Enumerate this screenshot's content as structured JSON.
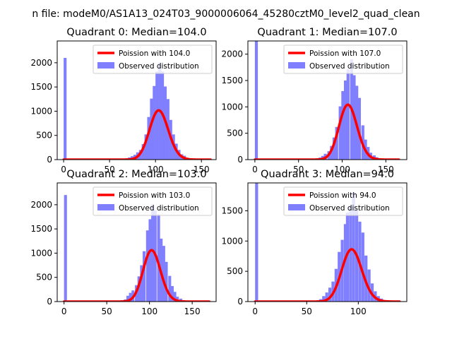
{
  "figure": {
    "suptitle": "n file: modeM0/AS1A13_024T03_9000006064_45280cztM0_level2_quad_clean"
  },
  "colors": {
    "hist": "#8080ff",
    "poisson": "#ff0000",
    "axes": "#000000",
    "background": "#ffffff"
  },
  "chart_data": [
    {
      "type": "bar",
      "title": "Quadrant 0: Median=104.0",
      "xlim": [
        -7,
        166
      ],
      "ylim": [
        0,
        2450
      ],
      "xticks": [
        0,
        50,
        100,
        150
      ],
      "yticks": [
        0,
        500,
        1000,
        1500,
        2000
      ],
      "legend_position": "top-right",
      "hist": {
        "name": "Observed distribution",
        "bin_width": 3.2,
        "bins": [
          [
            0,
            2100
          ],
          [
            64,
            20
          ],
          [
            67,
            25
          ],
          [
            70,
            45
          ],
          [
            73,
            70
          ],
          [
            76,
            100
          ],
          [
            79,
            150
          ],
          [
            82,
            200
          ],
          [
            85,
            320
          ],
          [
            88,
            520
          ],
          [
            91,
            880
          ],
          [
            94,
            1260
          ],
          [
            97,
            1520
          ],
          [
            100,
            1820
          ],
          [
            103,
            2000
          ],
          [
            106,
            1820
          ],
          [
            109,
            1510
          ],
          [
            112,
            1250
          ],
          [
            115,
            820
          ],
          [
            118,
            520
          ],
          [
            121,
            330
          ],
          [
            124,
            200
          ],
          [
            127,
            110
          ],
          [
            130,
            80
          ],
          [
            133,
            40
          ],
          [
            136,
            20
          ],
          [
            139,
            15
          ],
          [
            142,
            8
          ],
          [
            145,
            5
          ]
        ]
      },
      "poisson": {
        "name": "Poission with 104.0",
        "mean": 104.0,
        "scale": 26000,
        "x_range": [
          0,
          160
        ]
      }
    },
    {
      "type": "bar",
      "title": "Quadrant 1: Median=107.0",
      "xlim": [
        -8,
        174
      ],
      "ylim": [
        0,
        2250
      ],
      "xticks": [
        0,
        50,
        100,
        150
      ],
      "yticks": [
        0,
        500,
        1000,
        1500,
        2000
      ],
      "legend_position": "top-right",
      "hist": {
        "name": "Observed distribution",
        "bin_width": 3.4,
        "bins": [
          [
            0,
            2250
          ],
          [
            66,
            15
          ],
          [
            70,
            25
          ],
          [
            73,
            40
          ],
          [
            76,
            70
          ],
          [
            79,
            110
          ],
          [
            83,
            160
          ],
          [
            86,
            260
          ],
          [
            89,
            420
          ],
          [
            92,
            620
          ],
          [
            96,
            1010
          ],
          [
            99,
            1300
          ],
          [
            102,
            1500
          ],
          [
            105,
            1710
          ],
          [
            109,
            1900
          ],
          [
            112,
            1600
          ],
          [
            115,
            1400
          ],
          [
            118,
            1170
          ],
          [
            122,
            650
          ],
          [
            125,
            380
          ],
          [
            128,
            240
          ],
          [
            131,
            130
          ],
          [
            135,
            80
          ],
          [
            138,
            45
          ],
          [
            141,
            25
          ],
          [
            144,
            15
          ],
          [
            148,
            10
          ]
        ]
      },
      "poisson": {
        "name": "Poission with 107.0",
        "mean": 107.0,
        "scale": 27000,
        "x_range": [
          0,
          165
        ]
      }
    },
    {
      "type": "bar",
      "title": "Quadrant 2: Median=103.0",
      "xlim": [
        -8,
        178
      ],
      "ylim": [
        0,
        2450
      ],
      "xticks": [
        0,
        50,
        100,
        150
      ],
      "yticks": [
        0,
        500,
        1000,
        1500,
        2000
      ],
      "legend_position": "top-right",
      "hist": {
        "name": "Observed distribution",
        "bin_width": 3.4,
        "bins": [
          [
            0,
            2200
          ],
          [
            63,
            15
          ],
          [
            66,
            25
          ],
          [
            70,
            45
          ],
          [
            73,
            120
          ],
          [
            76,
            180
          ],
          [
            79,
            230
          ],
          [
            83,
            340
          ],
          [
            86,
            520
          ],
          [
            89,
            750
          ],
          [
            92,
            1040
          ],
          [
            96,
            1470
          ],
          [
            99,
            1700
          ],
          [
            102,
            2000
          ],
          [
            105,
            1880
          ],
          [
            109,
            1800
          ],
          [
            112,
            1300
          ],
          [
            115,
            1150
          ],
          [
            118,
            820
          ],
          [
            122,
            530
          ],
          [
            125,
            320
          ],
          [
            128,
            200
          ],
          [
            131,
            100
          ],
          [
            135,
            60
          ],
          [
            138,
            30
          ],
          [
            141,
            15
          ],
          [
            144,
            10
          ]
        ]
      },
      "poisson": {
        "name": "Poission with 103.0",
        "mean": 103.0,
        "scale": 27000,
        "x_range": [
          0,
          170
        ]
      }
    },
    {
      "type": "bar",
      "title": "Quadrant 3: Median=94.0",
      "xlim": [
        -7,
        147
      ],
      "ylim": [
        0,
        1960
      ],
      "xticks": [
        0,
        50,
        100
      ],
      "yticks": [
        0,
        500,
        1000,
        1500
      ],
      "legend_position": "top-right",
      "hist": {
        "name": "Observed distribution",
        "bin_width": 2.9,
        "bins": [
          [
            0,
            1960
          ],
          [
            56,
            10
          ],
          [
            59,
            20
          ],
          [
            62,
            40
          ],
          [
            65,
            90
          ],
          [
            68,
            150
          ],
          [
            71,
            230
          ],
          [
            74,
            330
          ],
          [
            77,
            540
          ],
          [
            80,
            820
          ],
          [
            83,
            1020
          ],
          [
            86,
            1280
          ],
          [
            88,
            1470
          ],
          [
            91,
            1580
          ],
          [
            94,
            1810
          ],
          [
            97,
            1520
          ],
          [
            100,
            1320
          ],
          [
            103,
            1140
          ],
          [
            106,
            760
          ],
          [
            109,
            530
          ],
          [
            112,
            300
          ],
          [
            115,
            170
          ],
          [
            118,
            90
          ],
          [
            121,
            50
          ],
          [
            124,
            25
          ],
          [
            127,
            15
          ],
          [
            130,
            10
          ]
        ]
      },
      "poisson": {
        "name": "Poission with 94.0",
        "mean": 94.0,
        "scale": 21000,
        "x_range": [
          0,
          140
        ]
      }
    }
  ]
}
